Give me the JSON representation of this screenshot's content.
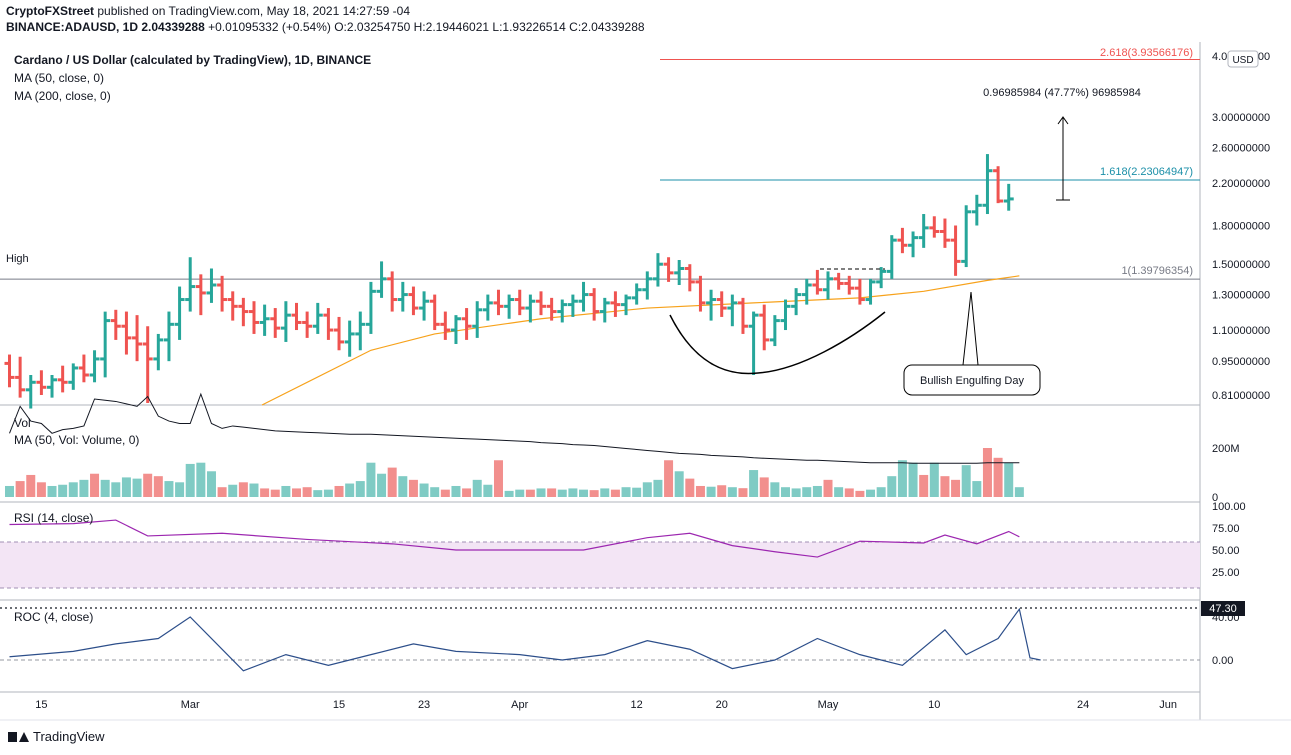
{
  "header": {
    "publisher": "CryptoFXStreet",
    "published_text": " published on TradingView.com, May 18, 2021 14:27:59 -04",
    "symbol": "BINANCE:ADAUSD, 1D",
    "last": "2.04339288",
    "change": "+0.01095332 (+0.54%)",
    "o_label": "O:",
    "o": "2.03254750",
    "h_label": "H:",
    "h": "2.19446021",
    "l_label": "L:",
    "l": "1.93226514",
    "c_label": "C:",
    "c": "2.04339288"
  },
  "legends": {
    "main": "Cardano / US Dollar (calculated by TradingView), 1D, BINANCE",
    "ma50": "MA (50, close, 0)",
    "ma200": "MA (200, close, 0)",
    "vol": "Vol",
    "vol_ma": "MA (50, Vol: Volume, 0)",
    "rsi": "RSI (14, close)",
    "roc": "ROC (4, close)"
  },
  "annotations": {
    "high": "High",
    "fib1": "1(1.39796354)",
    "fib1618": "1.618(2.23064947)",
    "fib2618": "2.618(3.93566176)",
    "measure": "0.96985984 (47.77%) 96985984",
    "engulfing": "Bullish Engulfing Day"
  },
  "axis": {
    "currency": "USD",
    "price_ticks": [
      "4.00000000",
      "3.00000000",
      "2.60000000",
      "2.20000000",
      "1.80000000",
      "1.50000000",
      "1.30000000",
      "1.10000000",
      "0.95000000",
      "0.81000000"
    ],
    "price_tick_values": [
      4.0,
      3.0,
      2.6,
      2.2,
      1.8,
      1.5,
      1.3,
      1.1,
      0.95,
      0.81
    ],
    "vol_ticks": [
      "200M",
      "0"
    ],
    "vol_tick_values": [
      200,
      0
    ],
    "rsi_ticks": [
      "100.00",
      "75.00",
      "50.00",
      "25.00"
    ],
    "rsi_tick_values": [
      100,
      75,
      50,
      25
    ],
    "roc_ticks": [
      "40.00",
      "0.00"
    ],
    "roc_tick_values": [
      40,
      0
    ],
    "roc_badge": "47.30",
    "x_ticks": [
      "15",
      "Mar",
      "15",
      "23",
      "Apr",
      "12",
      "20",
      "May",
      "10",
      "24",
      "Jun"
    ]
  },
  "branding": {
    "logo_text": "TradingView"
  },
  "colors": {
    "up": "#26a69a",
    "down": "#ef5350",
    "ma50": "#f7a21b",
    "ma200": "#000000",
    "rsi": "#9c27b0",
    "roc": "#2c4e8a"
  },
  "chart_data": {
    "type": "ohlc",
    "start_date": "2021-02-10",
    "price_scale": "log",
    "price_range": [
      0.76,
      4.3
    ],
    "levels": {
      "high": 1.39796354,
      "fib_1618": 2.23064947,
      "fib_2618": 3.93566176
    },
    "candles": [
      [
        0.94,
        0.98,
        0.84,
        0.88
      ],
      [
        0.88,
        0.97,
        0.8,
        0.83
      ],
      [
        0.83,
        0.89,
        0.76,
        0.86
      ],
      [
        0.86,
        0.91,
        0.81,
        0.84
      ],
      [
        0.84,
        0.89,
        0.8,
        0.87
      ],
      [
        0.87,
        0.93,
        0.82,
        0.86
      ],
      [
        0.86,
        0.94,
        0.83,
        0.92
      ],
      [
        0.92,
        0.98,
        0.86,
        0.89
      ],
      [
        0.89,
        1.0,
        0.86,
        0.96
      ],
      [
        0.96,
        1.2,
        0.88,
        1.15
      ],
      [
        1.15,
        1.21,
        1.05,
        1.12
      ],
      [
        1.12,
        1.2,
        0.98,
        1.06
      ],
      [
        1.06,
        1.18,
        0.95,
        1.03
      ],
      [
        1.03,
        1.12,
        0.78,
        0.96
      ],
      [
        0.96,
        1.08,
        0.91,
        1.05
      ],
      [
        1.05,
        1.2,
        0.95,
        1.13
      ],
      [
        1.13,
        1.35,
        1.05,
        1.27
      ],
      [
        1.27,
        1.55,
        1.2,
        1.35
      ],
      [
        1.35,
        1.43,
        1.18,
        1.31
      ],
      [
        1.31,
        1.47,
        1.25,
        1.36
      ],
      [
        1.36,
        1.42,
        1.2,
        1.27
      ],
      [
        1.27,
        1.32,
        1.15,
        1.23
      ],
      [
        1.23,
        1.28,
        1.12,
        1.2
      ],
      [
        1.2,
        1.26,
        1.08,
        1.14
      ],
      [
        1.14,
        1.24,
        1.07,
        1.16
      ],
      [
        1.16,
        1.22,
        1.06,
        1.11
      ],
      [
        1.11,
        1.26,
        1.04,
        1.18
      ],
      [
        1.18,
        1.25,
        1.1,
        1.14
      ],
      [
        1.14,
        1.2,
        1.06,
        1.12
      ],
      [
        1.12,
        1.25,
        1.08,
        1.18
      ],
      [
        1.18,
        1.22,
        1.05,
        1.1
      ],
      [
        1.1,
        1.17,
        1.0,
        1.04
      ],
      [
        1.04,
        1.15,
        0.97,
        1.08
      ],
      [
        1.08,
        1.2,
        1.0,
        1.13
      ],
      [
        1.13,
        1.38,
        1.08,
        1.32
      ],
      [
        1.32,
        1.52,
        1.28,
        1.4
      ],
      [
        1.4,
        1.45,
        1.2,
        1.27
      ],
      [
        1.27,
        1.38,
        1.2,
        1.3
      ],
      [
        1.3,
        1.35,
        1.18,
        1.22
      ],
      [
        1.22,
        1.32,
        1.15,
        1.26
      ],
      [
        1.26,
        1.3,
        1.1,
        1.13
      ],
      [
        1.13,
        1.2,
        1.05,
        1.1
      ],
      [
        1.1,
        1.18,
        1.03,
        1.16
      ],
      [
        1.16,
        1.22,
        1.05,
        1.12
      ],
      [
        1.12,
        1.26,
        1.06,
        1.21
      ],
      [
        1.21,
        1.3,
        1.15,
        1.25
      ],
      [
        1.25,
        1.33,
        1.18,
        1.23
      ],
      [
        1.23,
        1.3,
        1.16,
        1.27
      ],
      [
        1.27,
        1.33,
        1.18,
        1.22
      ],
      [
        1.22,
        1.3,
        1.14,
        1.26
      ],
      [
        1.26,
        1.32,
        1.18,
        1.23
      ],
      [
        1.23,
        1.28,
        1.15,
        1.2
      ],
      [
        1.2,
        1.27,
        1.14,
        1.24
      ],
      [
        1.24,
        1.3,
        1.17,
        1.26
      ],
      [
        1.26,
        1.38,
        1.2,
        1.3
      ],
      [
        1.3,
        1.34,
        1.15,
        1.2
      ],
      [
        1.2,
        1.28,
        1.14,
        1.25
      ],
      [
        1.25,
        1.32,
        1.17,
        1.24
      ],
      [
        1.24,
        1.3,
        1.18,
        1.28
      ],
      [
        1.28,
        1.37,
        1.24,
        1.33
      ],
      [
        1.33,
        1.45,
        1.27,
        1.4
      ],
      [
        1.4,
        1.58,
        1.35,
        1.5
      ],
      [
        1.5,
        1.55,
        1.38,
        1.44
      ],
      [
        1.44,
        1.53,
        1.36,
        1.47
      ],
      [
        1.47,
        1.5,
        1.32,
        1.38
      ],
      [
        1.38,
        1.42,
        1.2,
        1.25
      ],
      [
        1.25,
        1.33,
        1.15,
        1.27
      ],
      [
        1.27,
        1.32,
        1.17,
        1.22
      ],
      [
        1.22,
        1.3,
        1.12,
        1.25
      ],
      [
        1.25,
        1.28,
        1.08,
        1.12
      ],
      [
        1.12,
        1.2,
        0.89,
        1.18
      ],
      [
        1.18,
        1.24,
        1.0,
        1.05
      ],
      [
        1.05,
        1.18,
        1.02,
        1.15
      ],
      [
        1.15,
        1.27,
        1.1,
        1.23
      ],
      [
        1.23,
        1.34,
        1.18,
        1.3
      ],
      [
        1.3,
        1.4,
        1.24,
        1.36
      ],
      [
        1.36,
        1.46,
        1.3,
        1.33
      ],
      [
        1.33,
        1.45,
        1.27,
        1.4
      ],
      [
        1.4,
        1.44,
        1.33,
        1.37
      ],
      [
        1.37,
        1.42,
        1.3,
        1.34
      ],
      [
        1.34,
        1.4,
        1.24,
        1.27
      ],
      [
        1.27,
        1.4,
        1.24,
        1.38
      ],
      [
        1.38,
        1.48,
        1.34,
        1.45
      ],
      [
        1.45,
        1.72,
        1.4,
        1.68
      ],
      [
        1.68,
        1.78,
        1.58,
        1.64
      ],
      [
        1.64,
        1.75,
        1.55,
        1.7
      ],
      [
        1.7,
        1.9,
        1.62,
        1.78
      ],
      [
        1.78,
        1.88,
        1.7,
        1.75
      ],
      [
        1.75,
        1.86,
        1.62,
        1.68
      ],
      [
        1.68,
        1.8,
        1.42,
        1.52
      ],
      [
        1.52,
        1.98,
        1.48,
        1.92
      ],
      [
        1.92,
        2.08,
        1.8,
        1.98
      ],
      [
        1.98,
        2.52,
        1.9,
        2.33
      ],
      [
        2.33,
        2.38,
        2.0,
        2.02
      ],
      [
        2.02,
        2.19,
        1.93,
        2.04
      ]
    ],
    "ma50": [
      [
        34,
        1.0
      ],
      [
        40,
        1.08
      ],
      [
        50,
        1.16
      ],
      [
        60,
        1.22
      ],
      [
        70,
        1.25
      ],
      [
        80,
        1.28
      ],
      [
        86,
        1.32
      ],
      [
        92,
        1.39
      ],
      [
        95,
        1.42
      ]
    ],
    "ma200_visible_from_index": 18,
    "volume": [
      [
        45,
        260
      ],
      [
        65,
        370
      ],
      [
        90,
        310
      ],
      [
        60,
        300
      ],
      [
        45,
        260
      ],
      [
        50,
        275
      ],
      [
        60,
        280
      ],
      [
        70,
        290
      ],
      [
        95,
        400
      ],
      [
        70,
        395
      ],
      [
        60,
        390
      ],
      [
        80,
        380
      ],
      [
        75,
        370
      ],
      [
        95,
        410
      ],
      [
        85,
        330
      ],
      [
        65,
        310
      ],
      [
        60,
        300
      ],
      [
        135,
        300
      ],
      [
        140,
        420
      ],
      [
        105,
        300
      ],
      [
        40,
        280
      ],
      [
        50,
        290
      ],
      [
        60,
        285
      ],
      [
        55,
        280
      ],
      [
        35,
        275
      ],
      [
        30,
        270
      ],
      [
        45,
        268
      ],
      [
        35,
        266
      ],
      [
        40,
        264
      ],
      [
        28,
        262
      ],
      [
        30,
        260
      ],
      [
        45,
        258
      ],
      [
        55,
        256
      ],
      [
        65,
        256
      ],
      [
        140,
        256
      ],
      [
        95,
        254
      ],
      [
        120,
        252
      ],
      [
        85,
        250
      ],
      [
        70,
        248
      ],
      [
        55,
        246
      ],
      [
        40,
        244
      ],
      [
        30,
        242
      ],
      [
        45,
        240
      ],
      [
        35,
        238
      ],
      [
        70,
        236
      ],
      [
        50,
        234
      ],
      [
        150,
        232
      ],
      [
        25,
        230
      ],
      [
        30,
        228
      ],
      [
        30,
        226
      ],
      [
        35,
        222
      ],
      [
        35,
        220
      ],
      [
        30,
        218
      ],
      [
        35,
        214
      ],
      [
        30,
        212
      ],
      [
        28,
        210
      ],
      [
        35,
        206
      ],
      [
        30,
        202
      ],
      [
        40,
        198
      ],
      [
        38,
        194
      ],
      [
        60,
        190
      ],
      [
        70,
        186
      ],
      [
        150,
        182
      ],
      [
        105,
        178
      ],
      [
        75,
        176
      ],
      [
        45,
        174
      ],
      [
        42,
        170
      ],
      [
        48,
        168
      ],
      [
        40,
        166
      ],
      [
        36,
        164
      ],
      [
        110,
        160
      ],
      [
        80,
        158
      ],
      [
        60,
        156
      ],
      [
        40,
        154
      ],
      [
        35,
        152
      ],
      [
        40,
        150
      ],
      [
        45,
        150
      ],
      [
        70,
        148
      ],
      [
        40,
        146
      ],
      [
        35,
        144
      ],
      [
        25,
        142
      ],
      [
        30,
        140
      ],
      [
        40,
        140
      ],
      [
        85,
        140
      ],
      [
        150,
        140
      ],
      [
        140,
        138
      ],
      [
        90,
        138
      ],
      [
        140,
        138
      ],
      [
        85,
        138
      ],
      [
        70,
        138
      ],
      [
        130,
        138
      ],
      [
        65,
        138
      ],
      [
        200,
        140
      ],
      [
        160,
        140
      ],
      [
        140,
        140
      ],
      [
        40,
        140
      ]
    ],
    "volume_down": [
      1,
      2,
      3,
      8,
      13,
      14,
      20,
      22,
      24,
      25,
      27,
      28,
      31,
      36,
      38,
      41,
      43,
      46,
      49,
      51,
      55,
      57,
      62,
      64,
      65,
      67,
      69,
      71,
      77,
      79,
      80,
      86,
      88,
      89,
      92,
      93
    ],
    "rsi": [
      [
        0,
        79
      ],
      [
        6,
        80
      ],
      [
        10,
        84
      ],
      [
        13,
        66
      ],
      [
        20,
        69
      ],
      [
        28,
        62
      ],
      [
        36,
        57
      ],
      [
        42,
        50
      ],
      [
        48,
        50
      ],
      [
        54,
        50
      ],
      [
        60,
        64
      ],
      [
        64,
        69
      ],
      [
        68,
        55
      ],
      [
        72,
        48
      ],
      [
        76,
        42
      ],
      [
        80,
        60
      ],
      [
        86,
        58
      ],
      [
        88,
        67
      ],
      [
        91,
        57
      ],
      [
        94,
        71
      ],
      [
        95,
        65
      ]
    ],
    "roc": [
      [
        0,
        3
      ],
      [
        6,
        8
      ],
      [
        10,
        15
      ],
      [
        14,
        20
      ],
      [
        17,
        40
      ],
      [
        22,
        -10
      ],
      [
        26,
        5
      ],
      [
        30,
        -5
      ],
      [
        34,
        5
      ],
      [
        38,
        15
      ],
      [
        42,
        8
      ],
      [
        48,
        5
      ],
      [
        52,
        0
      ],
      [
        56,
        5
      ],
      [
        60,
        18
      ],
      [
        64,
        10
      ],
      [
        68,
        -8
      ],
      [
        72,
        0
      ],
      [
        76,
        20
      ],
      [
        80,
        5
      ],
      [
        84,
        -5
      ],
      [
        88,
        28
      ],
      [
        90,
        5
      ],
      [
        93,
        20
      ],
      [
        95,
        47.3
      ],
      [
        96,
        2
      ],
      [
        97,
        0
      ]
    ]
  }
}
